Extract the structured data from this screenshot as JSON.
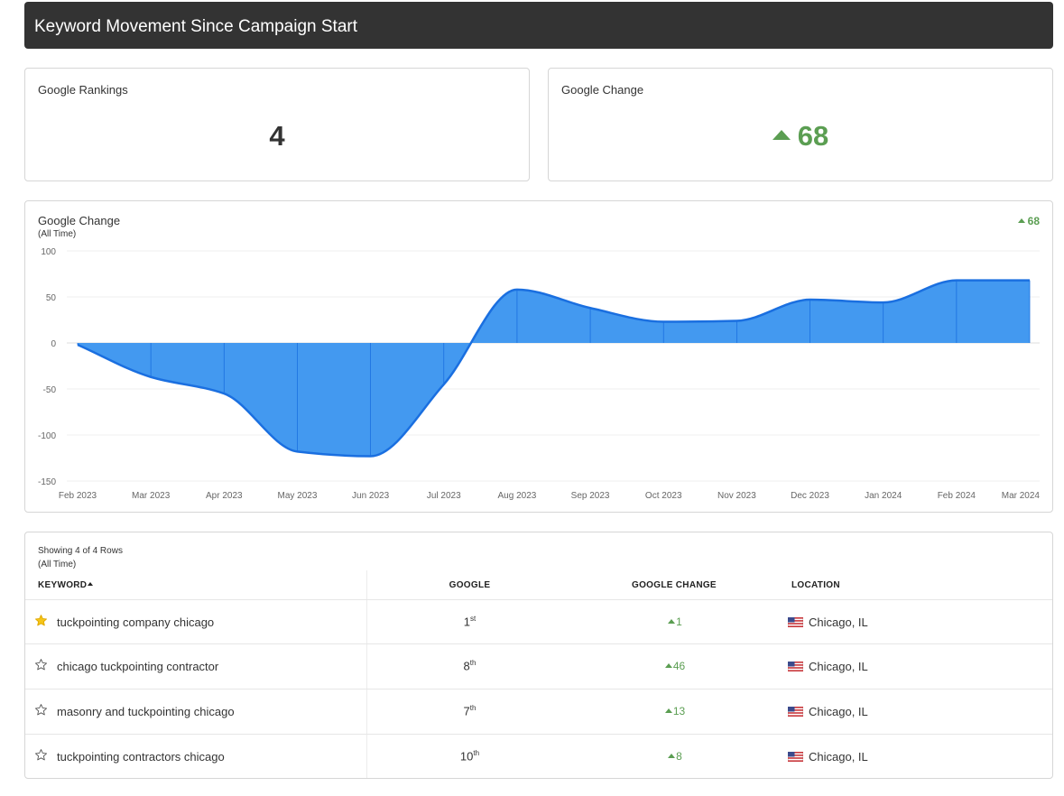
{
  "header": {
    "title": "Keyword Movement Since Campaign Start"
  },
  "cards": {
    "rankings": {
      "label": "Google Rankings",
      "value": "4"
    },
    "change": {
      "label": "Google Change",
      "value": "68"
    }
  },
  "chart_panel": {
    "title": "Google Change",
    "subtitle": "(All Time)",
    "summary_value": "68",
    "colors": {
      "fill": "#4399f0",
      "line": "#1a6fe0"
    }
  },
  "chart_data": {
    "type": "area",
    "title": "Google Change",
    "subtitle": "(All Time)",
    "categories": [
      "Feb 2023",
      "Mar 2023",
      "Apr 2023",
      "May 2023",
      "Jun 2023",
      "Jul 2023",
      "Aug 2023",
      "Sep 2023",
      "Oct 2023",
      "Nov 2023",
      "Dec 2023",
      "Jan 2024",
      "Feb 2024",
      "Mar 2024"
    ],
    "values": [
      -2,
      -37,
      -55,
      -118,
      -123,
      -45,
      58,
      38,
      23,
      24,
      47,
      44,
      68,
      68
    ],
    "ylim": [
      -150,
      100
    ],
    "yticks": [
      100,
      50,
      0,
      -50,
      -100,
      -150
    ],
    "grid": true,
    "legend": "none"
  },
  "table": {
    "showing": "Showing 4 of 4 Rows",
    "subtitle": "(All Time)",
    "columns": {
      "keyword": "KEYWORD",
      "google": "GOOGLE",
      "change": "GOOGLE CHANGE",
      "location": "LOCATION"
    },
    "rows": [
      {
        "keyword": "tuckpointing company chicago",
        "starred": true,
        "rank": "1",
        "rank_suffix": "st",
        "change": "1",
        "location": "Chicago, IL"
      },
      {
        "keyword": "chicago tuckpointing contractor",
        "starred": false,
        "rank": "8",
        "rank_suffix": "th",
        "change": "46",
        "location": "Chicago, IL"
      },
      {
        "keyword": "masonry and tuckpointing chicago",
        "starred": false,
        "rank": "7",
        "rank_suffix": "th",
        "change": "13",
        "location": "Chicago, IL"
      },
      {
        "keyword": "tuckpointing contractors chicago",
        "starred": false,
        "rank": "10",
        "rank_suffix": "th",
        "change": "8",
        "location": "Chicago, IL"
      }
    ]
  }
}
